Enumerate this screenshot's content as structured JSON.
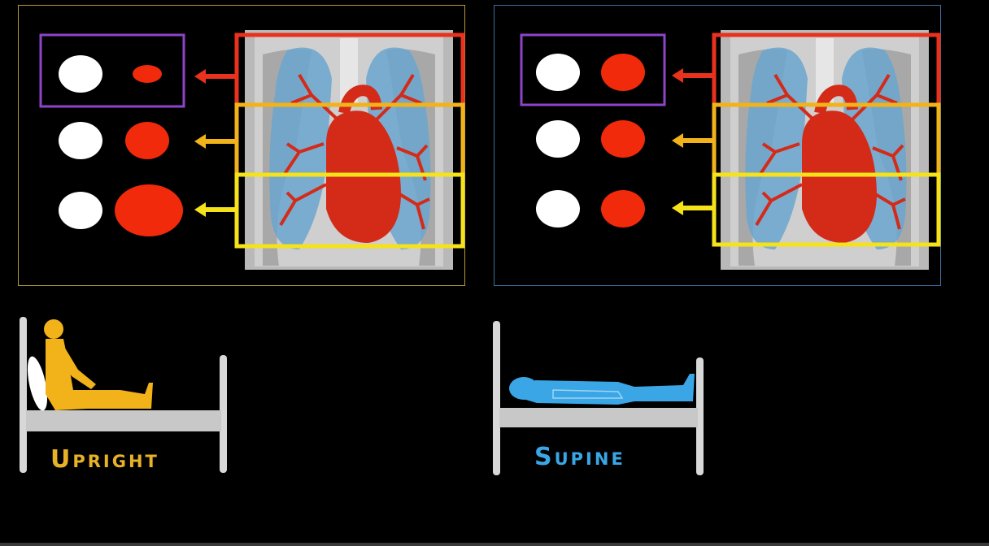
{
  "labels": {
    "upright": "Upright",
    "supine": "Supine"
  },
  "colors": {
    "upright_frame": "#b8973a",
    "supine_frame": "#3b6e9e",
    "upright_label": "#e7b128",
    "supine_label": "#3aa6e6",
    "zone_top": "#e8321e",
    "zone_middle": "#f2b21a",
    "zone_bottom": "#f5e21a",
    "selection_box": "#8e44c8",
    "alveolus": "#ffffff",
    "vessel": "#f02a0a"
  },
  "panels": [
    {
      "id": "upright",
      "zones": [
        {
          "zone": "top",
          "vessel_size": "small"
        },
        {
          "zone": "middle",
          "vessel_size": "medium"
        },
        {
          "zone": "bottom",
          "vessel_size": "large"
        }
      ]
    },
    {
      "id": "supine",
      "zones": [
        {
          "zone": "top",
          "vessel_size": "medium"
        },
        {
          "zone": "middle",
          "vessel_size": "medium"
        },
        {
          "zone": "bottom",
          "vessel_size": "medium"
        }
      ]
    }
  ],
  "icons": [
    "chest-xray-icon",
    "arrow-left-icon",
    "upright-patient-icon",
    "supine-patient-icon",
    "bed-icon",
    "pillow-icon"
  ]
}
